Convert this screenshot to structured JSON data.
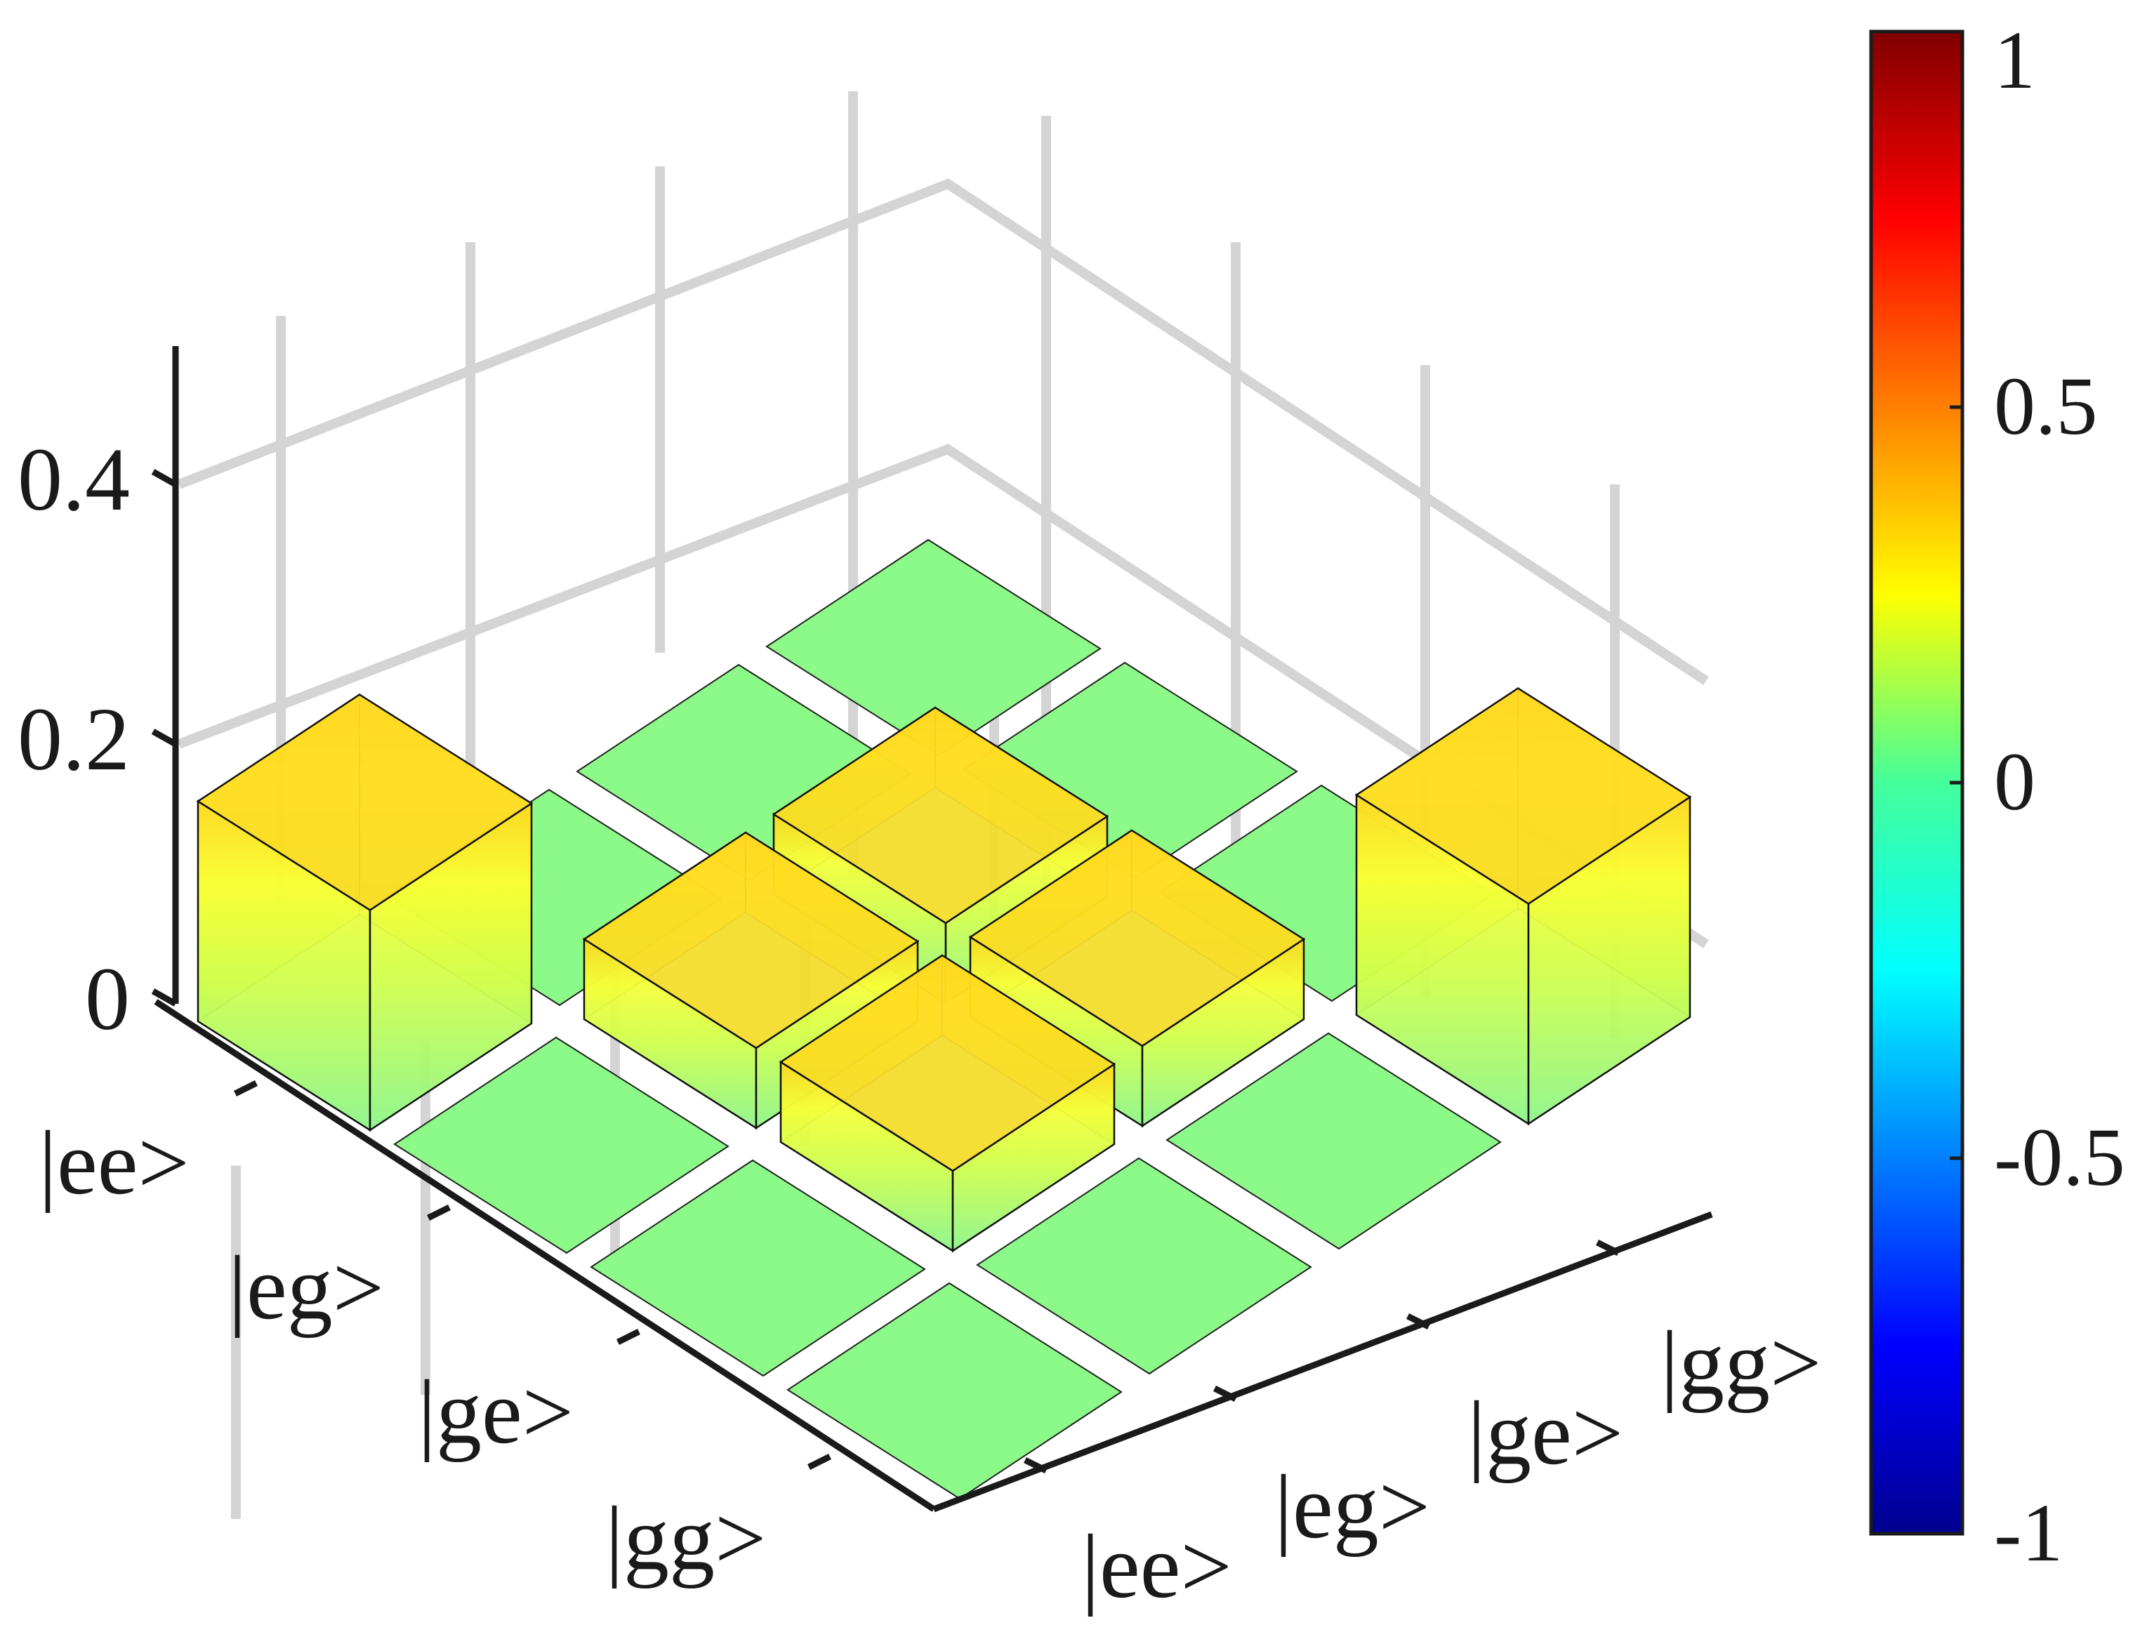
{
  "chart_data": {
    "type": "bar3d",
    "rows": [
      "|ee>",
      "|eg>",
      "|ge>",
      "|gg>"
    ],
    "cols": [
      "|ee>",
      "|eg>",
      "|ge>",
      "|gg>"
    ],
    "values": [
      [
        0.33,
        0.0,
        0.0,
        0.0
      ],
      [
        0.0,
        0.12,
        0.12,
        0.0
      ],
      [
        0.0,
        0.12,
        0.12,
        0.0
      ],
      [
        0.0,
        0.0,
        0.0,
        0.33
      ]
    ],
    "zticks": [
      "0",
      "0.2",
      "0.4"
    ],
    "zlim": [
      0,
      0.4
    ],
    "colorbar": {
      "ticks": [
        "1",
        "0.5",
        "0",
        "-0.5",
        "-1"
      ],
      "range": [
        -1,
        1
      ],
      "colormap": "jet"
    },
    "grid": true
  }
}
